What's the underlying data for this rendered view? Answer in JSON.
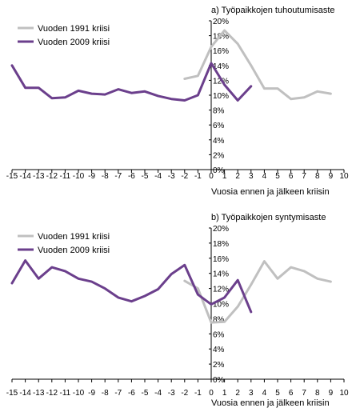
{
  "charts": [
    {
      "type": "line",
      "title": "a) Työpaikkojen tuhoutumisaste",
      "xlabel": "Vuosia ennen ja jälkeen kriisin",
      "ylabel": "",
      "xlim": [
        -15,
        10
      ],
      "ylim": [
        0,
        20
      ],
      "x_ticks": [
        -15,
        -14,
        -13,
        -12,
        -11,
        -10,
        -9,
        -8,
        -7,
        -6,
        -5,
        -4,
        -3,
        -2,
        -1,
        0,
        1,
        2,
        3,
        4,
        5,
        6,
        7,
        8,
        9,
        10
      ],
      "y_ticks": [
        {
          "value": 0,
          "label": "0%"
        },
        {
          "value": 2,
          "label": "2%"
        },
        {
          "value": 4,
          "label": "4%"
        },
        {
          "value": 6,
          "label": "6%"
        },
        {
          "value": 8,
          "label": "8%"
        },
        {
          "value": 10,
          "label": "10%"
        },
        {
          "value": 12,
          "label": "12%"
        },
        {
          "value": 14,
          "label": "14%"
        },
        {
          "value": 16,
          "label": "16%"
        },
        {
          "value": 18,
          "label": "18%"
        },
        {
          "value": 20,
          "label": "20%"
        }
      ],
      "grid": false,
      "legend_placement": "top-left",
      "series": [
        {
          "name": "Vuoden 1991 kriisi",
          "color": "#c0c0c0",
          "x": [
            -2,
            -1,
            0,
            1,
            2,
            3,
            4,
            5,
            6,
            7,
            8,
            9
          ],
          "values": [
            12.2,
            12.6,
            16.5,
            18.7,
            16.9,
            14.0,
            10.9,
            10.9,
            9.5,
            9.7,
            10.5,
            10.2
          ]
        },
        {
          "name": "Vuoden 2009 kriisi",
          "color": "#6b3f8c",
          "x": [
            -15,
            -14,
            -13,
            -12,
            -11,
            -10,
            -9,
            -8,
            -7,
            -6,
            -5,
            -4,
            -3,
            -2,
            -1,
            0,
            1,
            2,
            3
          ],
          "values": [
            14.0,
            11.0,
            11.0,
            9.6,
            9.7,
            10.6,
            10.2,
            10.1,
            10.8,
            10.3,
            10.5,
            9.9,
            9.5,
            9.3,
            10.0,
            14.3,
            11.4,
            9.3,
            11.2
          ]
        }
      ]
    },
    {
      "type": "line",
      "title": "b) Työpaikkojen syntymisaste",
      "xlabel": "Vuosia ennen ja jälkeen kriisin",
      "ylabel": "",
      "xlim": [
        -15,
        10
      ],
      "ylim": [
        0,
        20
      ],
      "x_ticks": [
        -15,
        -14,
        -13,
        -12,
        -11,
        -10,
        -9,
        -8,
        -7,
        -6,
        -5,
        -4,
        -3,
        -2,
        -1,
        0,
        1,
        2,
        3,
        4,
        5,
        6,
        7,
        8,
        9,
        10
      ],
      "y_ticks": [
        {
          "value": 0,
          "label": "0%"
        },
        {
          "value": 2,
          "label": "2%"
        },
        {
          "value": 4,
          "label": "4%"
        },
        {
          "value": 6,
          "label": "6%"
        },
        {
          "value": 8,
          "label": "8%"
        },
        {
          "value": 10,
          "label": "10%"
        },
        {
          "value": 12,
          "label": "12%"
        },
        {
          "value": 14,
          "label": "14%"
        },
        {
          "value": 16,
          "label": "16%"
        },
        {
          "value": 18,
          "label": "18%"
        },
        {
          "value": 20,
          "label": "20%"
        }
      ],
      "grid": false,
      "legend_placement": "top-left",
      "series": [
        {
          "name": "Vuoden 1991 kriisi",
          "color": "#c0c0c0",
          "x": [
            -2,
            -1,
            0,
            1,
            2,
            3,
            4,
            5,
            6,
            7,
            8,
            9
          ],
          "values": [
            13.0,
            12.0,
            7.5,
            7.6,
            9.6,
            12.5,
            15.6,
            13.3,
            14.8,
            14.3,
            13.3,
            12.9
          ]
        },
        {
          "name": "Vuoden 2009 kriisi",
          "color": "#6b3f8c",
          "x": [
            -15,
            -14,
            -13,
            -12,
            -11,
            -10,
            -9,
            -8,
            -7,
            -6,
            -5,
            -4,
            -3,
            -2,
            -1,
            0,
            1,
            2,
            3
          ],
          "values": [
            12.7,
            15.7,
            13.3,
            14.8,
            14.3,
            13.3,
            12.9,
            12.0,
            10.8,
            10.3,
            11.0,
            11.9,
            13.9,
            15.1,
            11.2,
            9.9,
            10.8,
            13.1,
            8.9
          ]
        }
      ]
    }
  ]
}
